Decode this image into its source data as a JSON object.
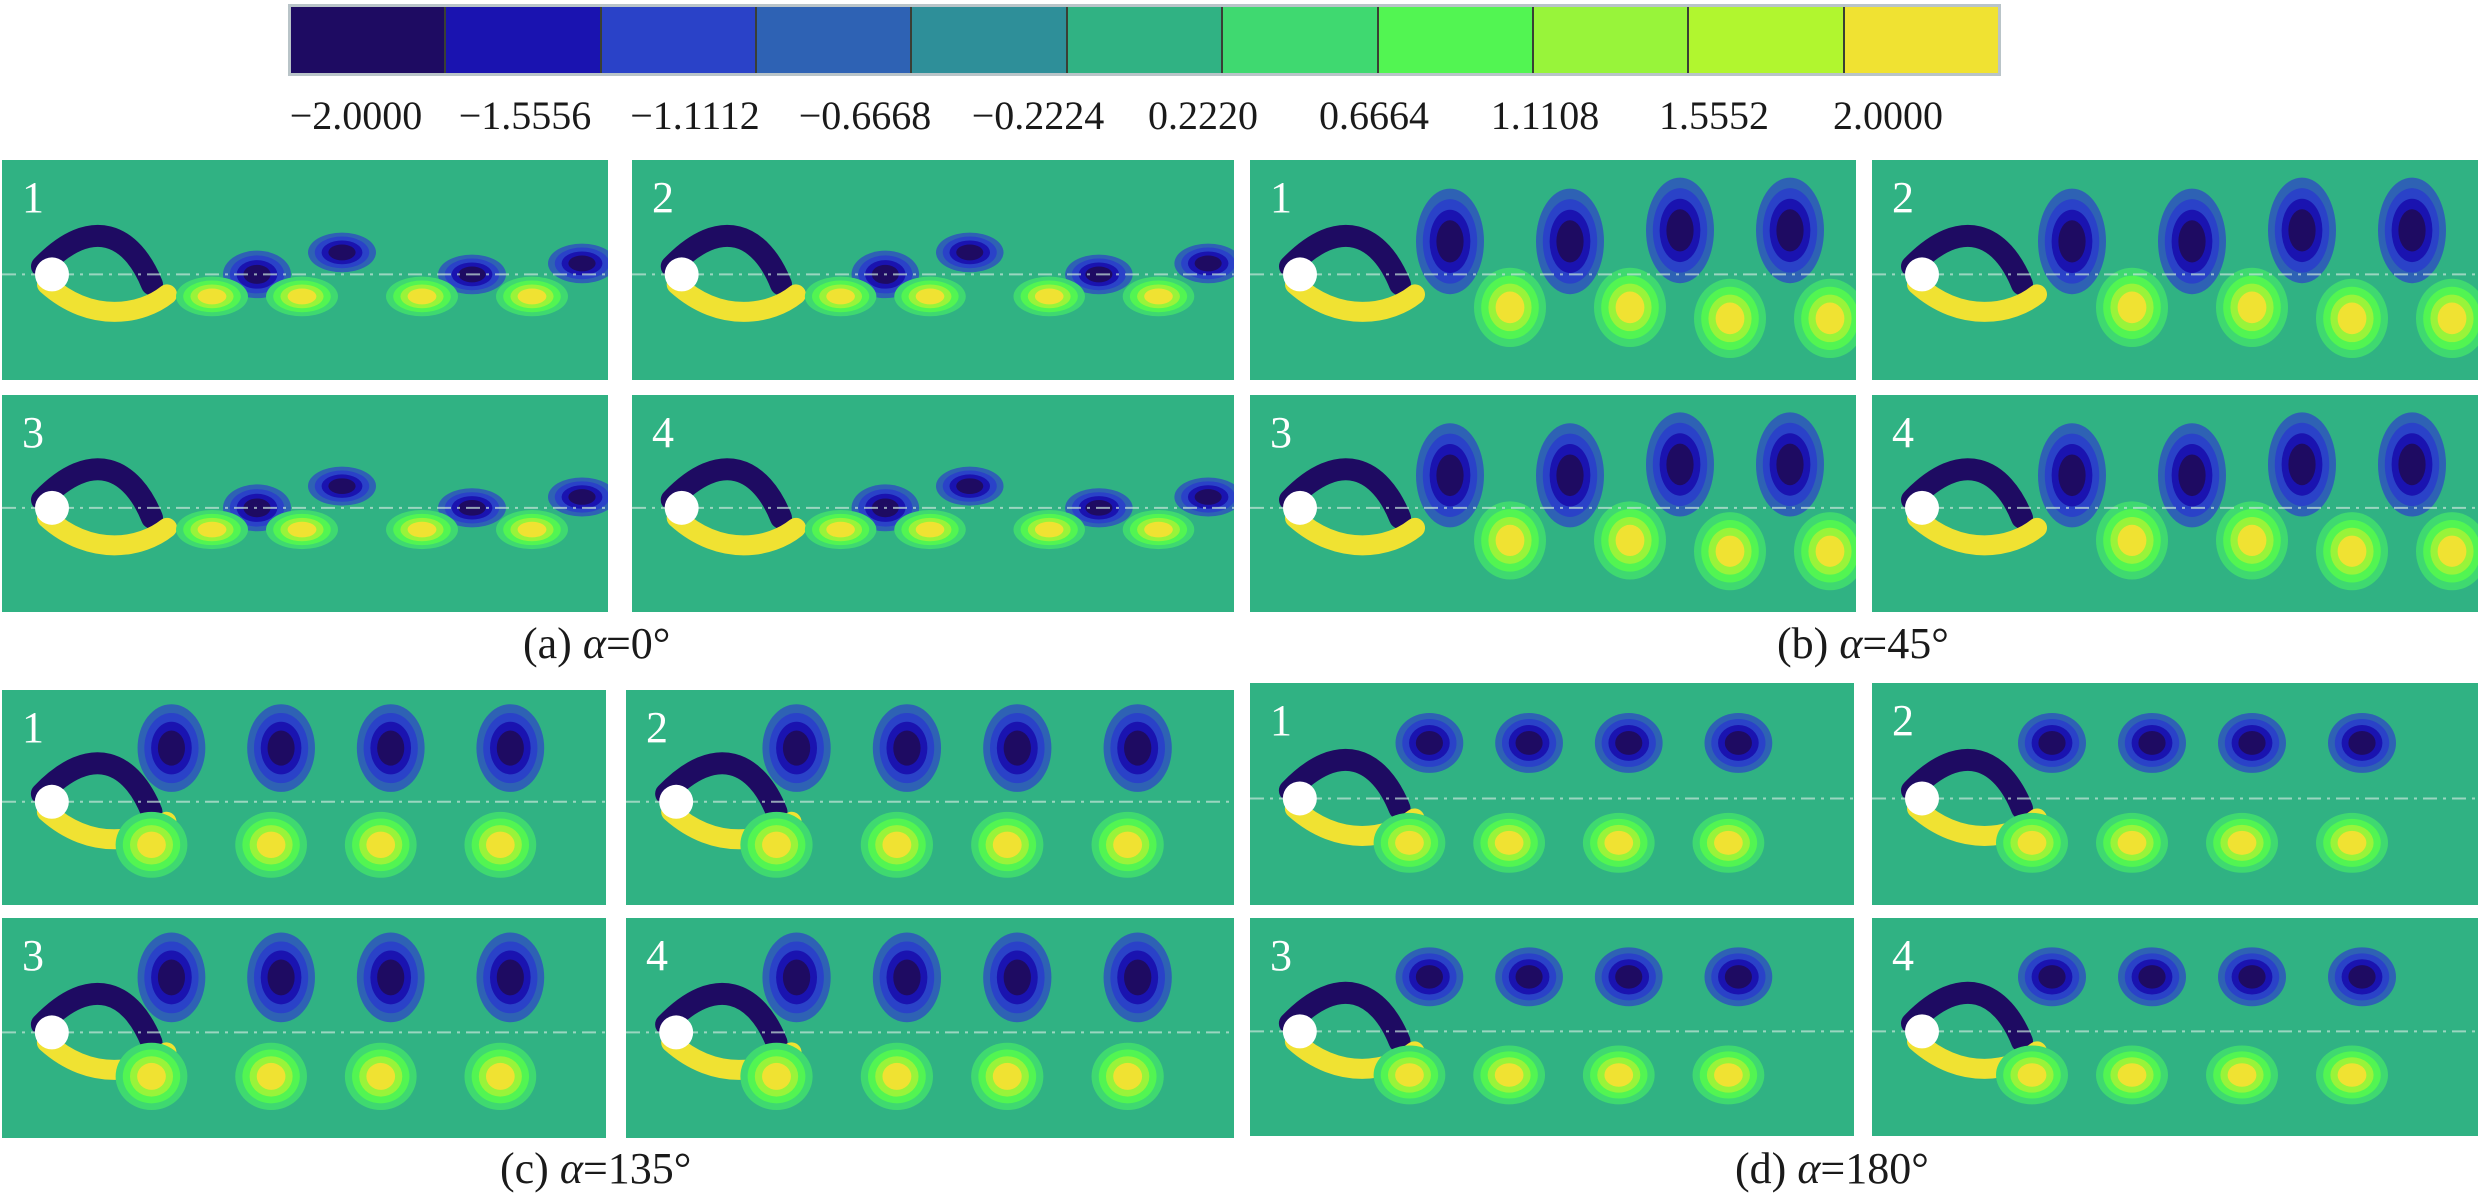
{
  "colorbar": {
    "colors": [
      "#1e0b62",
      "#1a13b0",
      "#2a42c8",
      "#2e62b4",
      "#2e8f99",
      "#30b283",
      "#3fd970",
      "#52f552",
      "#98f43a",
      "#b1f62f",
      "#f0e232"
    ],
    "labels": [
      "−2.0000",
      "−1.5556",
      "−1.1112",
      "−0.6668",
      "−0.2224",
      "0.2220",
      "0.6664",
      "1.1108",
      "1.5552",
      "2.0000"
    ]
  },
  "groups": [
    {
      "caption_prefix": "(a) ",
      "caption_symbol": "α",
      "caption_value": "=0°",
      "panel_labels": [
        "1",
        "2",
        "3",
        "4"
      ]
    },
    {
      "caption_prefix": "(b) ",
      "caption_symbol": "α",
      "caption_value": "=45°",
      "panel_labels": [
        "1",
        "2",
        "3",
        "4"
      ]
    },
    {
      "caption_prefix": "(c) ",
      "caption_symbol": "α",
      "caption_value": "=135°",
      "panel_labels": [
        "1",
        "2",
        "3",
        "4"
      ]
    },
    {
      "caption_prefix": "(d) ",
      "caption_symbol": "α",
      "caption_value": "=180°",
      "panel_labels": [
        "1",
        "2",
        "3",
        "4"
      ]
    }
  ]
}
